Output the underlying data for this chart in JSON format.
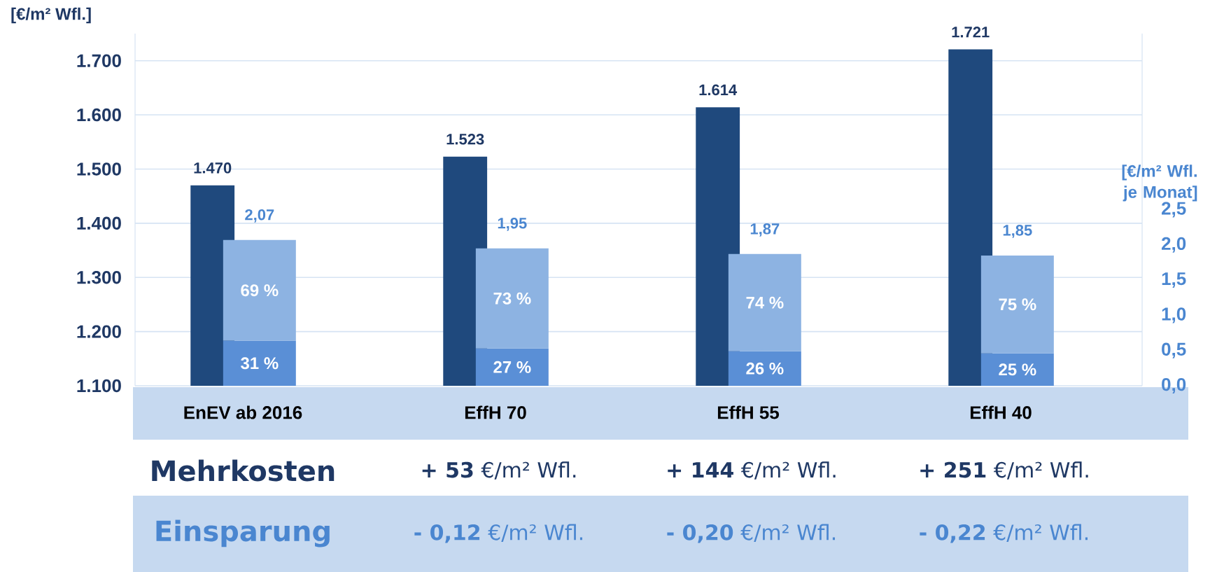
{
  "chart_data": {
    "type": "bar",
    "ylabel": "[€/m² Wfl.]",
    "y2label": "[€/m² Wfl. je Monat]",
    "categories": [
      "EnEV ab 2016",
      "EffH 70",
      "EffH 55",
      "EffH 40"
    ],
    "series": [
      {
        "color": "#1f497d",
        "values": [
          1470,
          1523,
          1614,
          1721
        ],
        "value_labels": [
          "1.470",
          "1.523",
          "1.614",
          "1.721"
        ],
        "axis": "y"
      },
      {
        "color": "#5a8fd6",
        "values": [
          0.64,
          0.53,
          0.49,
          0.46
        ],
        "axis": "y2"
      },
      {
        "color": "#8db3e2",
        "values": [
          1.43,
          1.42,
          1.38,
          1.39
        ],
        "axis": "y2"
      }
    ],
    "stacked": true,
    "ylim": [
      1100,
      1750
    ],
    "yticks": [
      {
        "value": 1100,
        "label": "1.100"
      },
      {
        "value": 1200,
        "label": "1.200"
      },
      {
        "value": 1300,
        "label": "1.300"
      },
      {
        "value": 1400,
        "label": "1.400"
      },
      {
        "value": 1500,
        "label": "1.500"
      },
      {
        "value": 1600,
        "label": "1.600"
      },
      {
        "value": 1700,
        "label": "1.700"
      }
    ],
    "y2lim": [
      0,
      5
    ],
    "y2ticks": [
      {
        "value": 0,
        "label": "0,0"
      },
      {
        "value": 0.5,
        "label": "0,5"
      },
      {
        "value": 1,
        "label": "1,0"
      },
      {
        "value": 1.5,
        "label": "1,5"
      },
      {
        "value": 2,
        "label": "2,0"
      },
      {
        "value": 2.5,
        "label": "2,5"
      }
    ],
    "grid": "y",
    "annotations": [
      "Mehrkosten",
      "**+ 53** €/m² Wfl.",
      "**+ 144** €/m² Wfl.",
      "**+ 251** €/m² Wfl.",
      "Einsparung",
      "**- 0,12** €/m² Wfl.",
      "**- 0,20** €/m² Wfl.",
      "**- 0,22** €/m² Wfl.",
      "31 %",
      "27 %",
      "26 %",
      "25 %",
      "69 %",
      "73 %",
      "74 %",
      "75 %",
      "2,07",
      "1,95",
      "1,87",
      "1,85"
    ]
  }
}
